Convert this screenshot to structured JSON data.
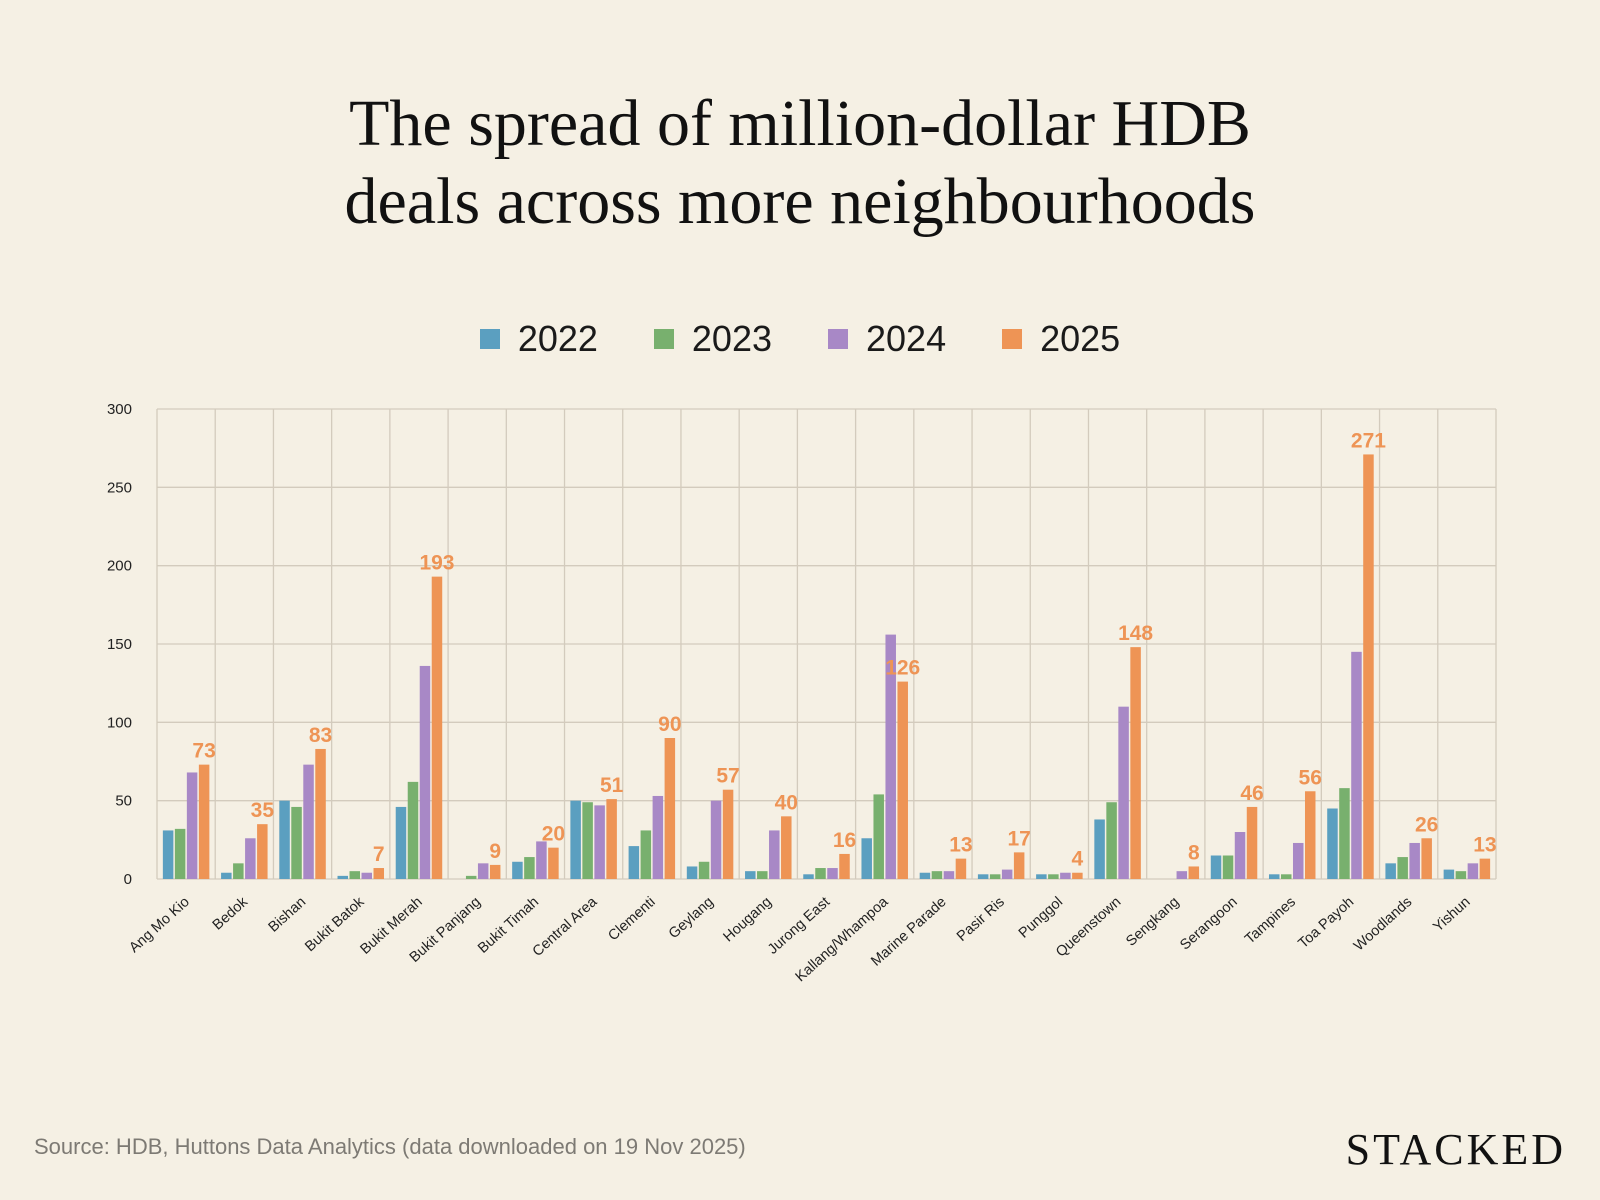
{
  "chart_data": {
    "type": "bar",
    "title": "The spread of million-dollar HDB deals across more neighbourhoods",
    "title_lines": [
      "The spread of million-dollar HDB",
      "deals across more neighbourhoods"
    ],
    "xlabel": "",
    "ylabel": "",
    "ylim": [
      0,
      300
    ],
    "yticks": [
      0,
      50,
      100,
      150,
      200,
      250,
      300
    ],
    "grid": true,
    "legend_position": "top-center",
    "categories": [
      "Ang Mo Kio",
      "Bedok",
      "Bishan",
      "Bukit Batok",
      "Bukit Merah",
      "Bukit Panjang",
      "Bukit Timah",
      "Central Area",
      "Clementi",
      "Geylang",
      "Hougang",
      "Jurong East",
      "Kallang/Whampoa",
      "Marine Parade",
      "Pasir Ris",
      "Punggol",
      "Queenstown",
      "Sengkang",
      "Serangoon",
      "Tampines",
      "Toa Payoh",
      "Woodlands",
      "Yishun"
    ],
    "series": [
      {
        "name": "2022",
        "color": "#5b9fc0",
        "values": [
          31,
          4,
          50,
          2,
          46,
          0,
          11,
          50,
          21,
          8,
          5,
          3,
          26,
          4,
          3,
          3,
          38,
          0,
          15,
          3,
          45,
          10,
          6
        ]
      },
      {
        "name": "2023",
        "color": "#78b06e",
        "values": [
          32,
          10,
          46,
          5,
          62,
          2,
          14,
          49,
          31,
          11,
          5,
          7,
          54,
          5,
          3,
          3,
          49,
          0,
          15,
          3,
          58,
          14,
          5
        ]
      },
      {
        "name": "2024",
        "color": "#a888c6",
        "values": [
          68,
          26,
          73,
          4,
          136,
          10,
          24,
          47,
          53,
          50,
          31,
          7,
          156,
          5,
          6,
          4,
          110,
          5,
          30,
          23,
          145,
          23,
          10
        ]
      },
      {
        "name": "2025",
        "color": "#ee9455",
        "values": [
          73,
          35,
          83,
          7,
          193,
          9,
          20,
          51,
          90,
          57,
          40,
          16,
          126,
          13,
          17,
          4,
          148,
          8,
          46,
          56,
          271,
          26,
          13
        ],
        "data_labels": true
      }
    ]
  },
  "source": "Source: HDB, Huttons Data Analytics (data downloaded on 19 Nov 2025)",
  "logo": "STACKED"
}
